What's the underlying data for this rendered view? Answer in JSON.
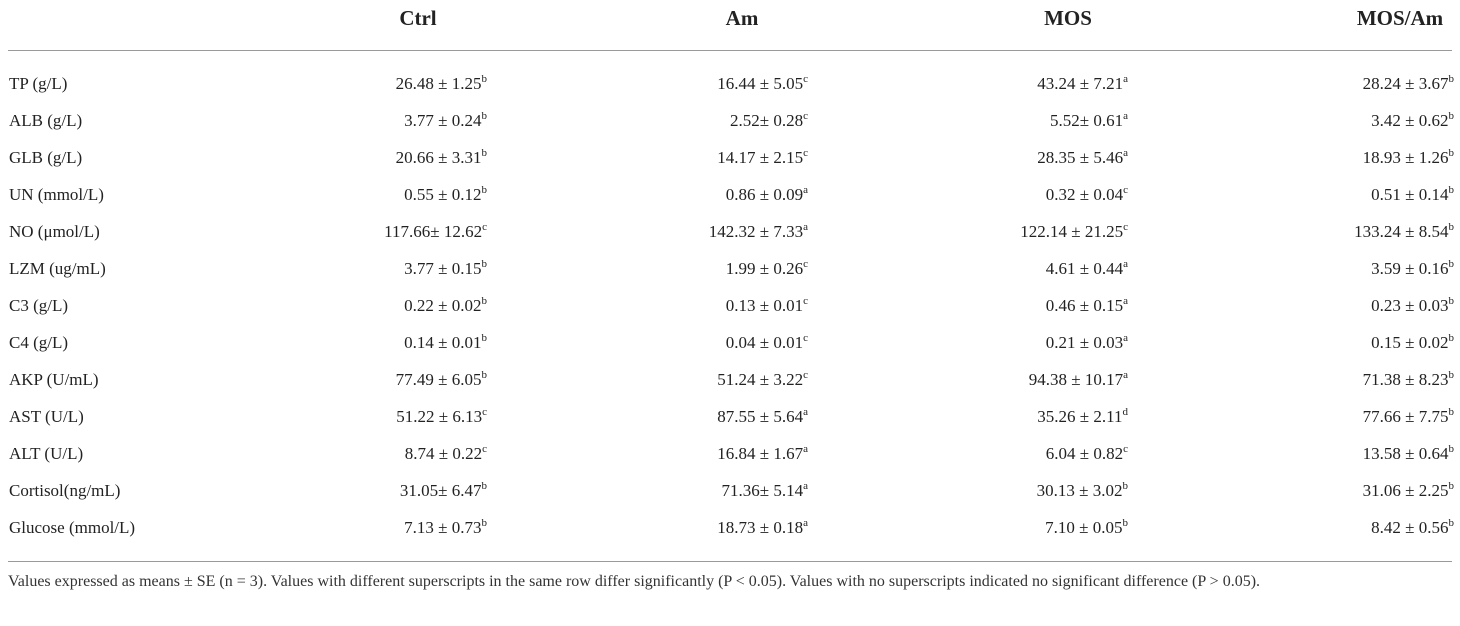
{
  "table": {
    "columns": [
      "",
      "Ctrl",
      "Am",
      "MOS",
      "MOS/Am"
    ],
    "rows": [
      {
        "label": "TP (g/L)",
        "cells": [
          {
            "text": "26.48 ± 1.25",
            "sup": "b"
          },
          {
            "text": "16.44 ± 5.05",
            "sup": "c"
          },
          {
            "text": "43.24 ± 7.21",
            "sup": "a"
          },
          {
            "text": "28.24 ± 3.67",
            "sup": "b"
          }
        ]
      },
      {
        "label": "ALB (g/L)",
        "cells": [
          {
            "text": "3.77 ± 0.24",
            "sup": "b"
          },
          {
            "text": "2.52± 0.28",
            "sup": "c"
          },
          {
            "text": "5.52± 0.61",
            "sup": "a"
          },
          {
            "text": "3.42 ± 0.62",
            "sup": "b"
          }
        ]
      },
      {
        "label": "GLB (g/L)",
        "cells": [
          {
            "text": "20.66 ± 3.31",
            "sup": "b"
          },
          {
            "text": "14.17 ± 2.15",
            "sup": "c"
          },
          {
            "text": "28.35 ± 5.46",
            "sup": "a"
          },
          {
            "text": "18.93 ± 1.26",
            "sup": "b"
          }
        ]
      },
      {
        "label": "UN (mmol/L)",
        "cells": [
          {
            "text": "0.55 ± 0.12",
            "sup": "b"
          },
          {
            "text": "0.86 ± 0.09",
            "sup": "a"
          },
          {
            "text": "0.32 ± 0.04",
            "sup": "c"
          },
          {
            "text": "0.51 ± 0.14",
            "sup": "b"
          }
        ]
      },
      {
        "label": "NO (μmol/L)",
        "cells": [
          {
            "text": "117.66± 12.62",
            "sup": "c"
          },
          {
            "text": "142.32 ± 7.33",
            "sup": "a"
          },
          {
            "text": "122.14 ± 21.25",
            "sup": "c"
          },
          {
            "text": "133.24 ± 8.54",
            "sup": "b"
          }
        ]
      },
      {
        "label": "LZM (ug/mL)",
        "cells": [
          {
            "text": "3.77 ± 0.15",
            "sup": "b"
          },
          {
            "text": "1.99 ± 0.26",
            "sup": "c"
          },
          {
            "text": "4.61 ± 0.44",
            "sup": "a"
          },
          {
            "text": "3.59 ± 0.16",
            "sup": "b"
          }
        ]
      },
      {
        "label": "C3 (g/L)",
        "cells": [
          {
            "text": "0.22 ± 0.02",
            "sup": "b"
          },
          {
            "text": "0.13 ± 0.01",
            "sup": "c"
          },
          {
            "text": "0.46 ± 0.15",
            "sup": "a"
          },
          {
            "text": "0.23 ± 0.03",
            "sup": "b"
          }
        ]
      },
      {
        "label": "C4 (g/L)",
        "cells": [
          {
            "text": "0.14 ± 0.01",
            "sup": "b"
          },
          {
            "text": "0.04 ± 0.01",
            "sup": "c"
          },
          {
            "text": "0.21 ± 0.03",
            "sup": "a"
          },
          {
            "text": "0.15 ± 0.02",
            "sup": "b"
          }
        ]
      },
      {
        "label": "AKP (U/mL)",
        "cells": [
          {
            "text": "77.49 ± 6.05",
            "sup": "b"
          },
          {
            "text": "51.24 ± 3.22",
            "sup": "c"
          },
          {
            "text": "94.38 ± 10.17",
            "sup": "a"
          },
          {
            "text": "71.38 ± 8.23",
            "sup": "b"
          }
        ]
      },
      {
        "label": "AST (U/L)",
        "cells": [
          {
            "text": "51.22 ± 6.13",
            "sup": "c"
          },
          {
            "text": "87.55 ± 5.64",
            "sup": "a"
          },
          {
            "text": "35.26 ± 2.11",
            "sup": "d"
          },
          {
            "text": "77.66 ± 7.75",
            "sup": "b"
          }
        ]
      },
      {
        "label": "ALT (U/L)",
        "cells": [
          {
            "text": "8.74 ± 0.22",
            "sup": "c"
          },
          {
            "text": "16.84 ± 1.67",
            "sup": "a"
          },
          {
            "text": "6.04 ± 0.82",
            "sup": "c"
          },
          {
            "text": "13.58 ± 0.64",
            "sup": "b"
          }
        ]
      },
      {
        "label": "Cortisol(ng/mL)",
        "cells": [
          {
            "text": "31.05± 6.47",
            "sup": "b"
          },
          {
            "text": "71.36± 5.14",
            "sup": "a"
          },
          {
            "text": "30.13 ± 3.02",
            "sup": "b"
          },
          {
            "text": "31.06 ± 2.25",
            "sup": "b"
          }
        ]
      },
      {
        "label": "Glucose (mmol/L)",
        "cells": [
          {
            "text": "7.13 ± 0.73",
            "sup": "b"
          },
          {
            "text": "18.73 ± 0.18",
            "sup": "a"
          },
          {
            "text": "7.10 ± 0.05",
            "sup": "b"
          },
          {
            "text": "8.42 ± 0.56",
            "sup": "b"
          }
        ]
      }
    ],
    "footnote": "Values expressed as means ± SE (n = 3). Values with different superscripts in the same row differ significantly (P < 0.05). Values with no superscripts indicated no significant difference (P > 0.05)."
  }
}
